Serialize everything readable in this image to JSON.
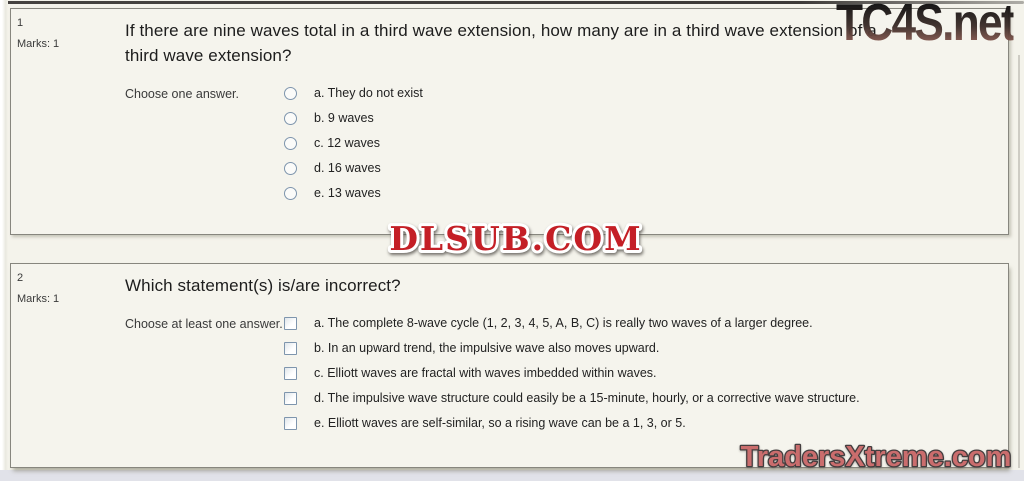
{
  "watermarks": {
    "top_right": "TC4S.net",
    "center": "DLSUB.COM",
    "bottom_right": "TradersXtreme.com",
    "colors": {
      "dlsub_red": "#c41f26",
      "dlsub_outline": "#ffffff",
      "traders_red": "#ca6d6d",
      "traders_outline": "#433d3e",
      "tc4s_gradient_top": "#0e0e0e",
      "tc4s_gradient_bottom": "#8d5c52"
    }
  },
  "page": {
    "background": "#f4f3eb",
    "box_border": "#87867e"
  },
  "questions": [
    {
      "number": "1",
      "marks_label": "Marks: 1",
      "title": "If there are nine waves total in a third wave extension, how many are in a third wave extension of a third wave extension?",
      "prompt": "Choose one answer.",
      "input_type": "radio",
      "options": [
        {
          "label": "a. They do not exist"
        },
        {
          "label": "b. 9 waves"
        },
        {
          "label": "c. 12 waves"
        },
        {
          "label": "d. 16 waves"
        },
        {
          "label": "e. 13 waves"
        }
      ]
    },
    {
      "number": "2",
      "marks_label": "Marks: 1",
      "title": "Which statement(s) is/are incorrect?",
      "prompt": "Choose at least one answer.",
      "input_type": "checkbox",
      "options": [
        {
          "label": "a. The complete 8-wave cycle (1, 2, 3, 4, 5, A, B, C) is really two waves of a larger degree."
        },
        {
          "label": "b. In an upward trend, the impulsive wave also moves upward."
        },
        {
          "label": "c. Elliott waves are fractal with waves imbedded within waves."
        },
        {
          "label": "d. The impulsive wave structure could easily be a 15-minute, hourly, or a corrective wave structure."
        },
        {
          "label": "e. Elliott waves are self-similar, so a rising wave can be a 1, 3, or 5."
        }
      ]
    }
  ]
}
